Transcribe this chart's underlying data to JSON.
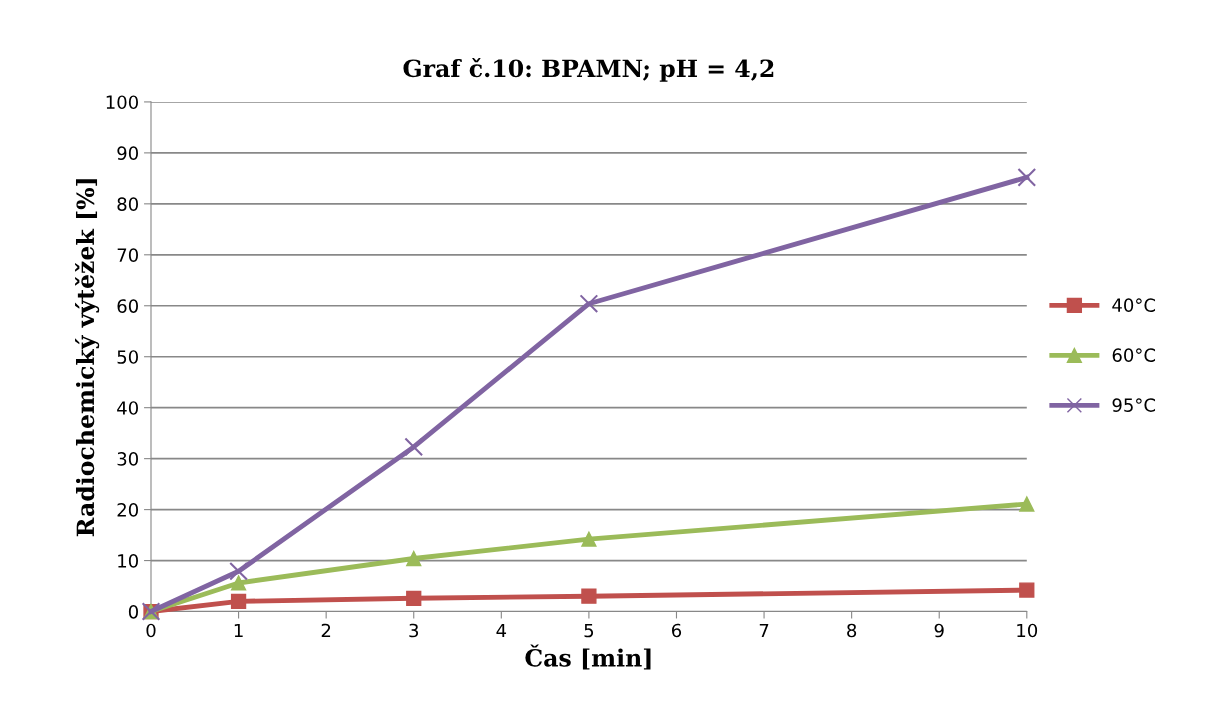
{
  "chart_data": {
    "type": "line",
    "title": "Graf č.10: BPAMN; pH = 4,2",
    "xlabel": "Čas [min]",
    "ylabel": "Radiochemický výtěžek [%]",
    "x": [
      0,
      1,
      3,
      5,
      10
    ],
    "series": [
      {
        "name": "40°C",
        "color": "#c0504d",
        "marker": "square",
        "values": [
          0,
          2.0,
          2.6,
          3.0,
          4.2
        ]
      },
      {
        "name": "60°C",
        "color": "#9bbb59",
        "marker": "triangle",
        "values": [
          0,
          5.6,
          10.4,
          14.2,
          21.1
        ]
      },
      {
        "name": "95°C",
        "color": "#8064a2",
        "marker": "cross",
        "values": [
          0,
          7.9,
          32.3,
          60.4,
          85.2
        ]
      }
    ],
    "xlim": [
      0,
      10
    ],
    "xticks": [
      0,
      1,
      2,
      3,
      4,
      5,
      6,
      7,
      8,
      9,
      10
    ],
    "ylim": [
      0,
      100
    ],
    "yticks": [
      0,
      10,
      20,
      30,
      40,
      50,
      60,
      70,
      80,
      90,
      100
    ],
    "grid": "y",
    "legend": "right",
    "line_style": "solid"
  }
}
